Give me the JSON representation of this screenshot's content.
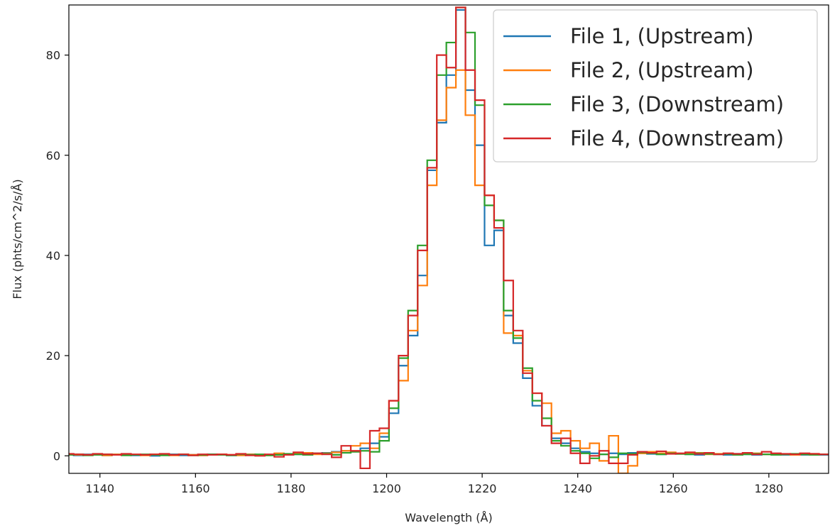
{
  "chart_data": {
    "type": "line",
    "step": true,
    "title": "",
    "xlabel": "Wavelength (Å)",
    "ylabel": "Flux (phts/cm^2/s/Å)",
    "xlim": [
      1133.5,
      1292.5
    ],
    "ylim": [
      -3.5,
      90
    ],
    "xticks": [
      1140,
      1160,
      1180,
      1200,
      1220,
      1240,
      1260,
      1280
    ],
    "yticks": [
      0,
      20,
      40,
      60,
      80
    ],
    "grid": false,
    "legend_position": "top-right",
    "x": [
      1133.5,
      1135.5,
      1137.5,
      1139.5,
      1141.5,
      1143.5,
      1145.5,
      1147.5,
      1149.5,
      1151.5,
      1153.5,
      1155.5,
      1157.5,
      1159.5,
      1161.5,
      1163.5,
      1165.5,
      1167.5,
      1169.5,
      1171.5,
      1173.5,
      1175.5,
      1177.5,
      1179.5,
      1181.5,
      1183.5,
      1185.5,
      1187.5,
      1189.5,
      1191.5,
      1193.5,
      1195.5,
      1197.5,
      1199.5,
      1201.5,
      1203.5,
      1205.5,
      1207.5,
      1209.5,
      1211.5,
      1213.5,
      1215.5,
      1217.5,
      1219.5,
      1221.5,
      1223.5,
      1225.5,
      1227.5,
      1229.5,
      1231.5,
      1233.5,
      1235.5,
      1237.5,
      1239.5,
      1241.5,
      1243.5,
      1245.5,
      1247.5,
      1249.5,
      1251.5,
      1253.5,
      1255.5,
      1257.5,
      1259.5,
      1261.5,
      1263.5,
      1265.5,
      1267.5,
      1269.5,
      1271.5,
      1273.5,
      1275.5,
      1277.5,
      1279.5,
      1281.5,
      1283.5,
      1285.5,
      1287.5,
      1289.5,
      1291.5
    ],
    "series": [
      {
        "name": "File 1, (Upstream)",
        "color": "#1f77b4",
        "values": [
          0.2,
          0.1,
          0.3,
          0.2,
          0.1,
          0.2,
          0.3,
          0.1,
          0.2,
          0.0,
          0.2,
          0.3,
          0.1,
          0.2,
          0.1,
          0.3,
          0.2,
          0.1,
          0.2,
          0.3,
          0.1,
          0.2,
          0.4,
          0.2,
          0.3,
          0.5,
          0.4,
          0.6,
          0.8,
          1.0,
          0.9,
          1.5,
          2.5,
          3.8,
          8.5,
          18.0,
          24.0,
          36.0,
          57.0,
          66.5,
          76.0,
          89.0,
          73.0,
          62.0,
          42.0,
          45.0,
          28.0,
          22.5,
          15.5,
          10.0,
          6.0,
          3.5,
          2.5,
          1.5,
          0.8,
          0.5,
          0.3,
          0.5,
          0.3,
          0.6,
          0.5,
          0.4,
          0.3,
          0.5,
          0.4,
          0.3,
          0.2,
          0.4,
          0.3,
          0.2,
          0.4,
          0.3,
          0.2,
          0.3,
          0.4,
          0.2,
          0.3,
          0.2,
          0.3,
          0.2
        ]
      },
      {
        "name": "File 2, (Upstream)",
        "color": "#ff7f0e",
        "values": [
          0.3,
          0.2,
          0.2,
          0.3,
          0.1,
          0.3,
          0.2,
          0.2,
          0.1,
          0.3,
          0.2,
          0.1,
          0.3,
          0.2,
          0.1,
          0.2,
          0.3,
          0.2,
          0.1,
          0.3,
          0.2,
          0.1,
          0.5,
          0.3,
          0.4,
          0.6,
          0.3,
          0.5,
          0.7,
          1.0,
          2.0,
          2.5,
          1.5,
          4.5,
          11.0,
          15.0,
          25.0,
          34.0,
          54.0,
          67.0,
          73.5,
          77.0,
          68.0,
          54.0,
          52.0,
          47.0,
          24.5,
          24.0,
          17.0,
          12.5,
          10.5,
          4.5,
          5.0,
          3.0,
          1.5,
          2.5,
          -1.0,
          4.0,
          -3.5,
          -2.0,
          0.5,
          0.8,
          0.5,
          0.7,
          0.4,
          0.5,
          0.6,
          0.3,
          0.4,
          0.5,
          0.3,
          0.4,
          0.5,
          0.3,
          0.4,
          0.3,
          0.2,
          0.3,
          0.4,
          0.3
        ]
      },
      {
        "name": "File 3, (Downstream)",
        "color": "#2ca02c",
        "values": [
          0.2,
          0.3,
          0.1,
          0.2,
          0.3,
          0.2,
          0.1,
          0.2,
          0.3,
          0.2,
          0.1,
          0.2,
          0.3,
          0.1,
          0.2,
          0.3,
          0.2,
          0.1,
          0.3,
          0.2,
          0.3,
          0.1,
          0.2,
          0.4,
          0.3,
          0.2,
          0.5,
          0.4,
          0.2,
          0.6,
          0.8,
          1.0,
          0.8,
          3.0,
          9.5,
          19.5,
          29.0,
          42.0,
          59.0,
          76.0,
          82.5,
          89.5,
          84.5,
          70.0,
          50.0,
          47.0,
          29.0,
          23.5,
          17.5,
          11.0,
          7.5,
          3.0,
          2.0,
          1.0,
          0.5,
          -0.5,
          0.3,
          -0.3,
          0.5,
          0.4,
          0.7,
          0.5,
          0.3,
          0.5,
          0.4,
          0.3,
          0.5,
          0.4,
          0.3,
          0.4,
          0.2,
          0.3,
          0.4,
          0.3,
          0.2,
          0.3,
          0.4,
          0.3,
          0.2,
          0.3
        ]
      },
      {
        "name": "File 4, (Downstream)",
        "color": "#d62728",
        "values": [
          0.4,
          0.3,
          0.2,
          0.4,
          0.3,
          0.2,
          0.4,
          0.3,
          0.2,
          0.3,
          0.4,
          0.2,
          0.3,
          0.1,
          0.3,
          0.2,
          0.3,
          0.2,
          0.4,
          0.1,
          0.0,
          0.3,
          -0.2,
          0.2,
          0.7,
          0.4,
          0.5,
          0.3,
          -0.3,
          2.0,
          1.0,
          -2.5,
          5.0,
          5.5,
          11.0,
          20.0,
          28.0,
          41.0,
          57.5,
          80.0,
          77.5,
          89.5,
          77.0,
          71.0,
          52.0,
          45.5,
          35.0,
          25.0,
          16.5,
          12.5,
          6.0,
          2.5,
          3.5,
          0.5,
          -1.5,
          0.0,
          1.0,
          -1.5,
          -1.5,
          0.2,
          0.8,
          0.6,
          0.9,
          0.4,
          0.5,
          0.7,
          0.4,
          0.6,
          0.3,
          0.5,
          0.4,
          0.6,
          0.3,
          0.8,
          0.5,
          0.4,
          0.3,
          0.5,
          0.4,
          0.3
        ]
      }
    ]
  }
}
